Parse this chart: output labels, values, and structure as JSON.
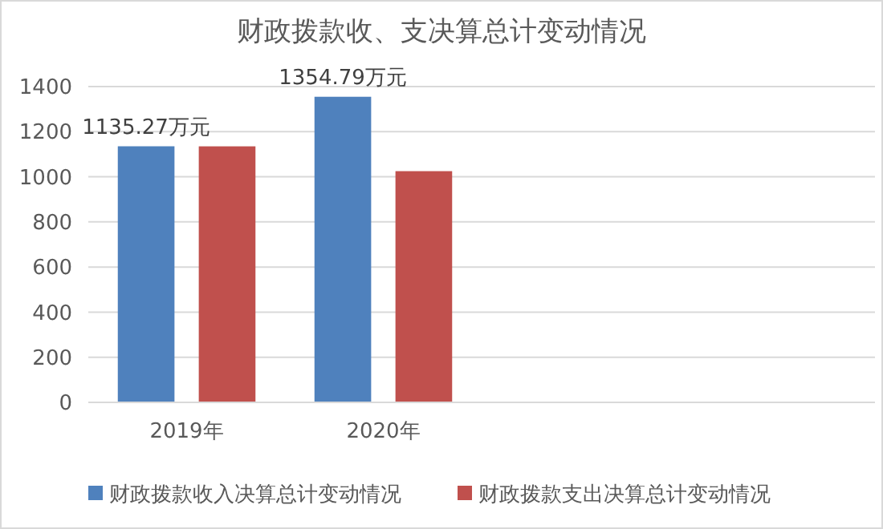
{
  "chart_data": {
    "type": "bar",
    "title": "财政拨款收、支决算总计变动情况",
    "categories": [
      "2019年",
      "2020年",
      null,
      null
    ],
    "series": [
      {
        "name": "财政拨款收入决算总计变动情况",
        "color": "#4f81bd",
        "values": [
          1135.27,
          1354.79,
          null,
          null
        ],
        "value_labels": [
          "1135.27万元",
          "1354.79万元",
          null,
          null
        ]
      },
      {
        "name": "财政拨款支出决算总计变动情况",
        "color": "#c0504d",
        "values": [
          1135,
          1025,
          null,
          null
        ]
      }
    ],
    "ylim": [
      0,
      1400
    ],
    "yticks": [
      0,
      200,
      400,
      600,
      800,
      1000,
      1200,
      1400
    ],
    "grid": "y",
    "legend": "bottom"
  }
}
